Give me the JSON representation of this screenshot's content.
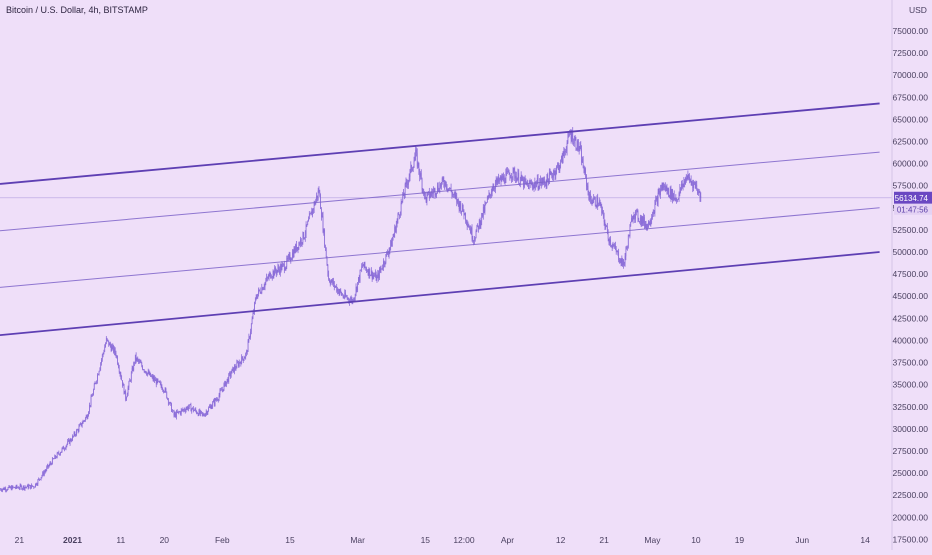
{
  "header": {
    "title": "Bitcoin / U.S. Dollar, 4h, BITSTAMP"
  },
  "colors": {
    "background": "#efdff9",
    "candles": "#8a6cd8",
    "channel_outer": "#5e3fb3",
    "channel_inner": "#7d63c9",
    "price_tag": "#6a47c2"
  },
  "chart_data": {
    "type": "line",
    "title": "Bitcoin / U.S. Dollar, 4h, BITSTAMP",
    "series_style": "candlestick",
    "ylabel": "USD",
    "ylim": [
      16300,
      78500
    ],
    "y_ticks": [
      "17500.00",
      "20000.00",
      "22500.00",
      "25000.00",
      "27500.00",
      "30000.00",
      "32500.00",
      "35000.00",
      "37500.00",
      "40000.00",
      "42500.00",
      "45000.00",
      "47500.00",
      "50000.00",
      "52500.00",
      "55000.00",
      "57500.00",
      "60000.00",
      "62500.00",
      "65000.00",
      "67500.00",
      "70000.00",
      "72500.00",
      "75000.00"
    ],
    "x_ticks": [
      "21",
      "2021",
      "11",
      "20",
      "Feb",
      "15",
      "Mar",
      "15",
      "12:00",
      "Apr",
      "12",
      "21",
      "May",
      "10",
      "19",
      "Jun",
      "14"
    ],
    "current_price": "56134.74",
    "countdown": "01:47:56",
    "close_path": [
      [
        "2020-12-17",
        23200
      ],
      [
        "2020-12-21",
        23400
      ],
      [
        "2020-12-24",
        23500
      ],
      [
        "2020-12-28",
        26500
      ],
      [
        "2021-01-01",
        29000
      ],
      [
        "2021-01-04",
        31500
      ],
      [
        "2021-01-08",
        40000
      ],
      [
        "2021-01-10",
        38500
      ],
      [
        "2021-01-12",
        33500
      ],
      [
        "2021-01-14",
        38000
      ],
      [
        "2021-01-17",
        36000
      ],
      [
        "2021-01-20",
        34500
      ],
      [
        "2021-01-22",
        31500
      ],
      [
        "2021-01-25",
        32500
      ],
      [
        "2021-01-28",
        31500
      ],
      [
        "2021-01-31",
        33500
      ],
      [
        "2021-02-03",
        36500
      ],
      [
        "2021-02-06",
        38500
      ],
      [
        "2021-02-08",
        45000
      ],
      [
        "2021-02-11",
        47500
      ],
      [
        "2021-02-14",
        48500
      ],
      [
        "2021-02-18",
        52000
      ],
      [
        "2021-02-21",
        57000
      ],
      [
        "2021-02-23",
        47000
      ],
      [
        "2021-02-26",
        45000
      ],
      [
        "2021-02-28",
        44500
      ],
      [
        "2021-03-02",
        48500
      ],
      [
        "2021-03-05",
        47000
      ],
      [
        "2021-03-08",
        51000
      ],
      [
        "2021-03-11",
        57500
      ],
      [
        "2021-03-13",
        61000
      ],
      [
        "2021-03-15",
        56000
      ],
      [
        "2021-03-19",
        58000
      ],
      [
        "2021-03-23",
        54500
      ],
      [
        "2021-03-25",
        51500
      ],
      [
        "2021-03-29",
        57500
      ],
      [
        "2021-04-02",
        59000
      ],
      [
        "2021-04-05",
        57500
      ],
      [
        "2021-04-09",
        58000
      ],
      [
        "2021-04-12",
        60000
      ],
      [
        "2021-04-14",
        63500
      ],
      [
        "2021-04-16",
        61500
      ],
      [
        "2021-04-18",
        56000
      ],
      [
        "2021-04-20",
        55500
      ],
      [
        "2021-04-22",
        51500
      ],
      [
        "2021-04-25",
        48500
      ],
      [
        "2021-04-27",
        54500
      ],
      [
        "2021-04-30",
        53000
      ],
      [
        "2021-05-03",
        57500
      ],
      [
        "2021-05-06",
        56000
      ],
      [
        "2021-05-08",
        58500
      ],
      [
        "2021-05-10",
        57500
      ],
      [
        "2021-05-11",
        56134.74
      ]
    ],
    "channel_lines": [
      {
        "name": "upper",
        "style": "bold",
        "start": [
          "2020-12-17",
          57700
        ],
        "end": [
          "2021-06-17",
          66800
        ]
      },
      {
        "name": "inner-upper",
        "style": "thin",
        "start": [
          "2020-12-17",
          52400
        ],
        "end": [
          "2021-06-17",
          61300
        ]
      },
      {
        "name": "middle",
        "style": "thin",
        "start": [
          "2020-12-17",
          46000
        ],
        "end": [
          "2021-06-17",
          55000
        ]
      },
      {
        "name": "lower",
        "style": "bold",
        "start": [
          "2020-12-17",
          40600
        ],
        "end": [
          "2021-06-17",
          50000
        ]
      }
    ]
  }
}
